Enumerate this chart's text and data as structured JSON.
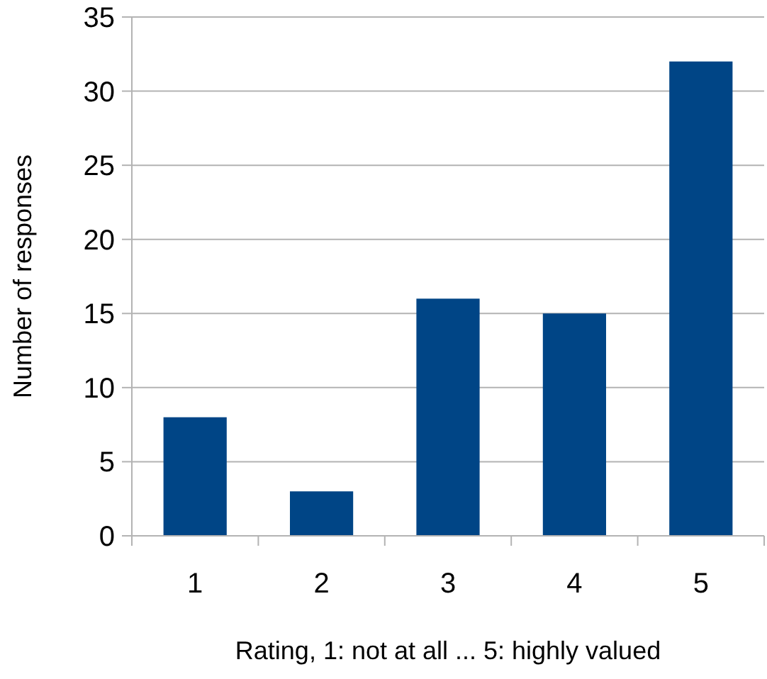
{
  "chart_data": {
    "type": "bar",
    "xlabel": "Rating, 1: not at all ... 5: highly valued",
    "ylabel": "Number of responses",
    "categories": [
      "1",
      "2",
      "3",
      "4",
      "5"
    ],
    "values": [
      8,
      3,
      16,
      15,
      32
    ],
    "color": "#004586",
    "ylim": [
      0,
      35
    ],
    "yticks": [
      0,
      5,
      10,
      15,
      20,
      25,
      30,
      35
    ],
    "grid": "y"
  }
}
